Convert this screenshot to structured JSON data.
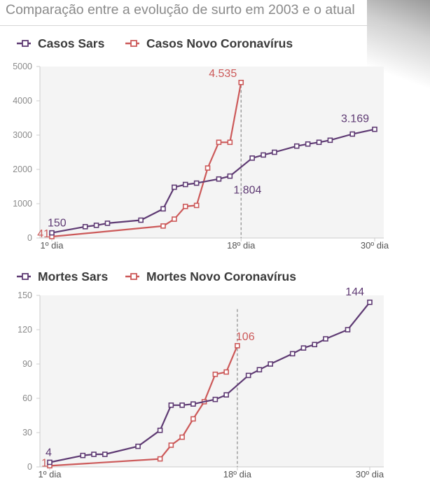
{
  "page": {
    "title": "Comparação entre a evolução de surto em 2003 e o atual"
  },
  "colors": {
    "sars": "#5e3a73",
    "ncov": "#cc5959",
    "axis": "#cccccc",
    "tick": "#8a8a8a",
    "bg": "#f4f4f4"
  },
  "chart_data": [
    {
      "type": "line",
      "title": "Casos",
      "xlabel": "",
      "ylabel": "",
      "xlim": [
        1,
        30.5
      ],
      "ylim": [
        0,
        5000
      ],
      "yticks": [
        0,
        1000,
        2000,
        3000,
        4000,
        5000
      ],
      "ytick_labels": [
        "0",
        "1000",
        "2000",
        "3000",
        "4000",
        "5000"
      ],
      "xticks": [
        1,
        18,
        30
      ],
      "xtick_labels": [
        "1º dia",
        "18º dia",
        "30º dia"
      ],
      "reference_line_x": 18,
      "legend": [
        "Casos Sars",
        "Casos Novo Coronavírus"
      ],
      "series": [
        {
          "name": "Casos Sars",
          "color_key": "sars",
          "x": [
            1,
            4,
            5,
            6,
            9,
            11,
            12,
            13,
            14,
            16,
            17,
            19,
            20,
            21,
            23,
            24,
            25,
            26,
            28,
            30
          ],
          "y": [
            150,
            330,
            370,
            430,
            520,
            850,
            1480,
            1560,
            1600,
            1720,
            1804,
            2330,
            2420,
            2500,
            2680,
            2740,
            2790,
            2850,
            3030,
            3169
          ]
        },
        {
          "name": "Casos Novo Coronavírus",
          "color_key": "ncov",
          "x": [
            1,
            11,
            12,
            13,
            14,
            15,
            16,
            17,
            18
          ],
          "y": [
            41,
            350,
            550,
            920,
            950,
            2040,
            2790,
            2790,
            4535
          ]
        }
      ],
      "labels": [
        {
          "text": "150",
          "series": "sars",
          "x": 1,
          "y": 150
        },
        {
          "text": "41",
          "series": "ncov",
          "x": 1,
          "y": 41
        },
        {
          "text": "4.535",
          "series": "ncov",
          "x": 18,
          "y": 4535
        },
        {
          "text": "1.804",
          "series": "sars",
          "x": 17,
          "y": 1804
        },
        {
          "text": "3.169",
          "series": "sars",
          "x": 30,
          "y": 3169
        }
      ]
    },
    {
      "type": "line",
      "title": "Mortes",
      "xlabel": "",
      "ylabel": "",
      "xlim": [
        1,
        30.5
      ],
      "ylim": [
        0,
        150
      ],
      "yticks": [
        0,
        30,
        60,
        90,
        120,
        150
      ],
      "ytick_labels": [
        "0",
        "30",
        "60",
        "90",
        "120",
        "150"
      ],
      "xticks": [
        1,
        18,
        30
      ],
      "xtick_labels": [
        "1º dia",
        "18º dia",
        "30º dia"
      ],
      "reference_line_x": 18,
      "legend": [
        "Mortes Sars",
        "Mortes Novo Coronavírus"
      ],
      "series": [
        {
          "name": "Mortes Sars",
          "color_key": "sars",
          "x": [
            1,
            4,
            5,
            6,
            9,
            11,
            12,
            13,
            14,
            16,
            17,
            19,
            20,
            21,
            23,
            24,
            25,
            26,
            28,
            30
          ],
          "y": [
            4,
            10,
            11,
            11,
            18,
            32,
            54,
            54,
            55,
            59,
            63,
            80,
            85,
            90,
            99,
            104,
            107,
            112,
            120,
            144
          ]
        },
        {
          "name": "Mortes Novo Coronavírus",
          "color_key": "ncov",
          "x": [
            1,
            11,
            12,
            13,
            14,
            15,
            16,
            17,
            18
          ],
          "y": [
            1,
            7,
            19,
            26,
            42,
            57,
            81,
            83,
            106
          ]
        }
      ],
      "labels": [
        {
          "text": "4",
          "series": "sars",
          "x": 1,
          "y": 4
        },
        {
          "text": "1",
          "series": "ncov",
          "x": 1,
          "y": 1
        },
        {
          "text": "106",
          "series": "ncov",
          "x": 18,
          "y": 106
        },
        {
          "text": "144",
          "series": "sars",
          "x": 30,
          "y": 144
        }
      ]
    }
  ]
}
